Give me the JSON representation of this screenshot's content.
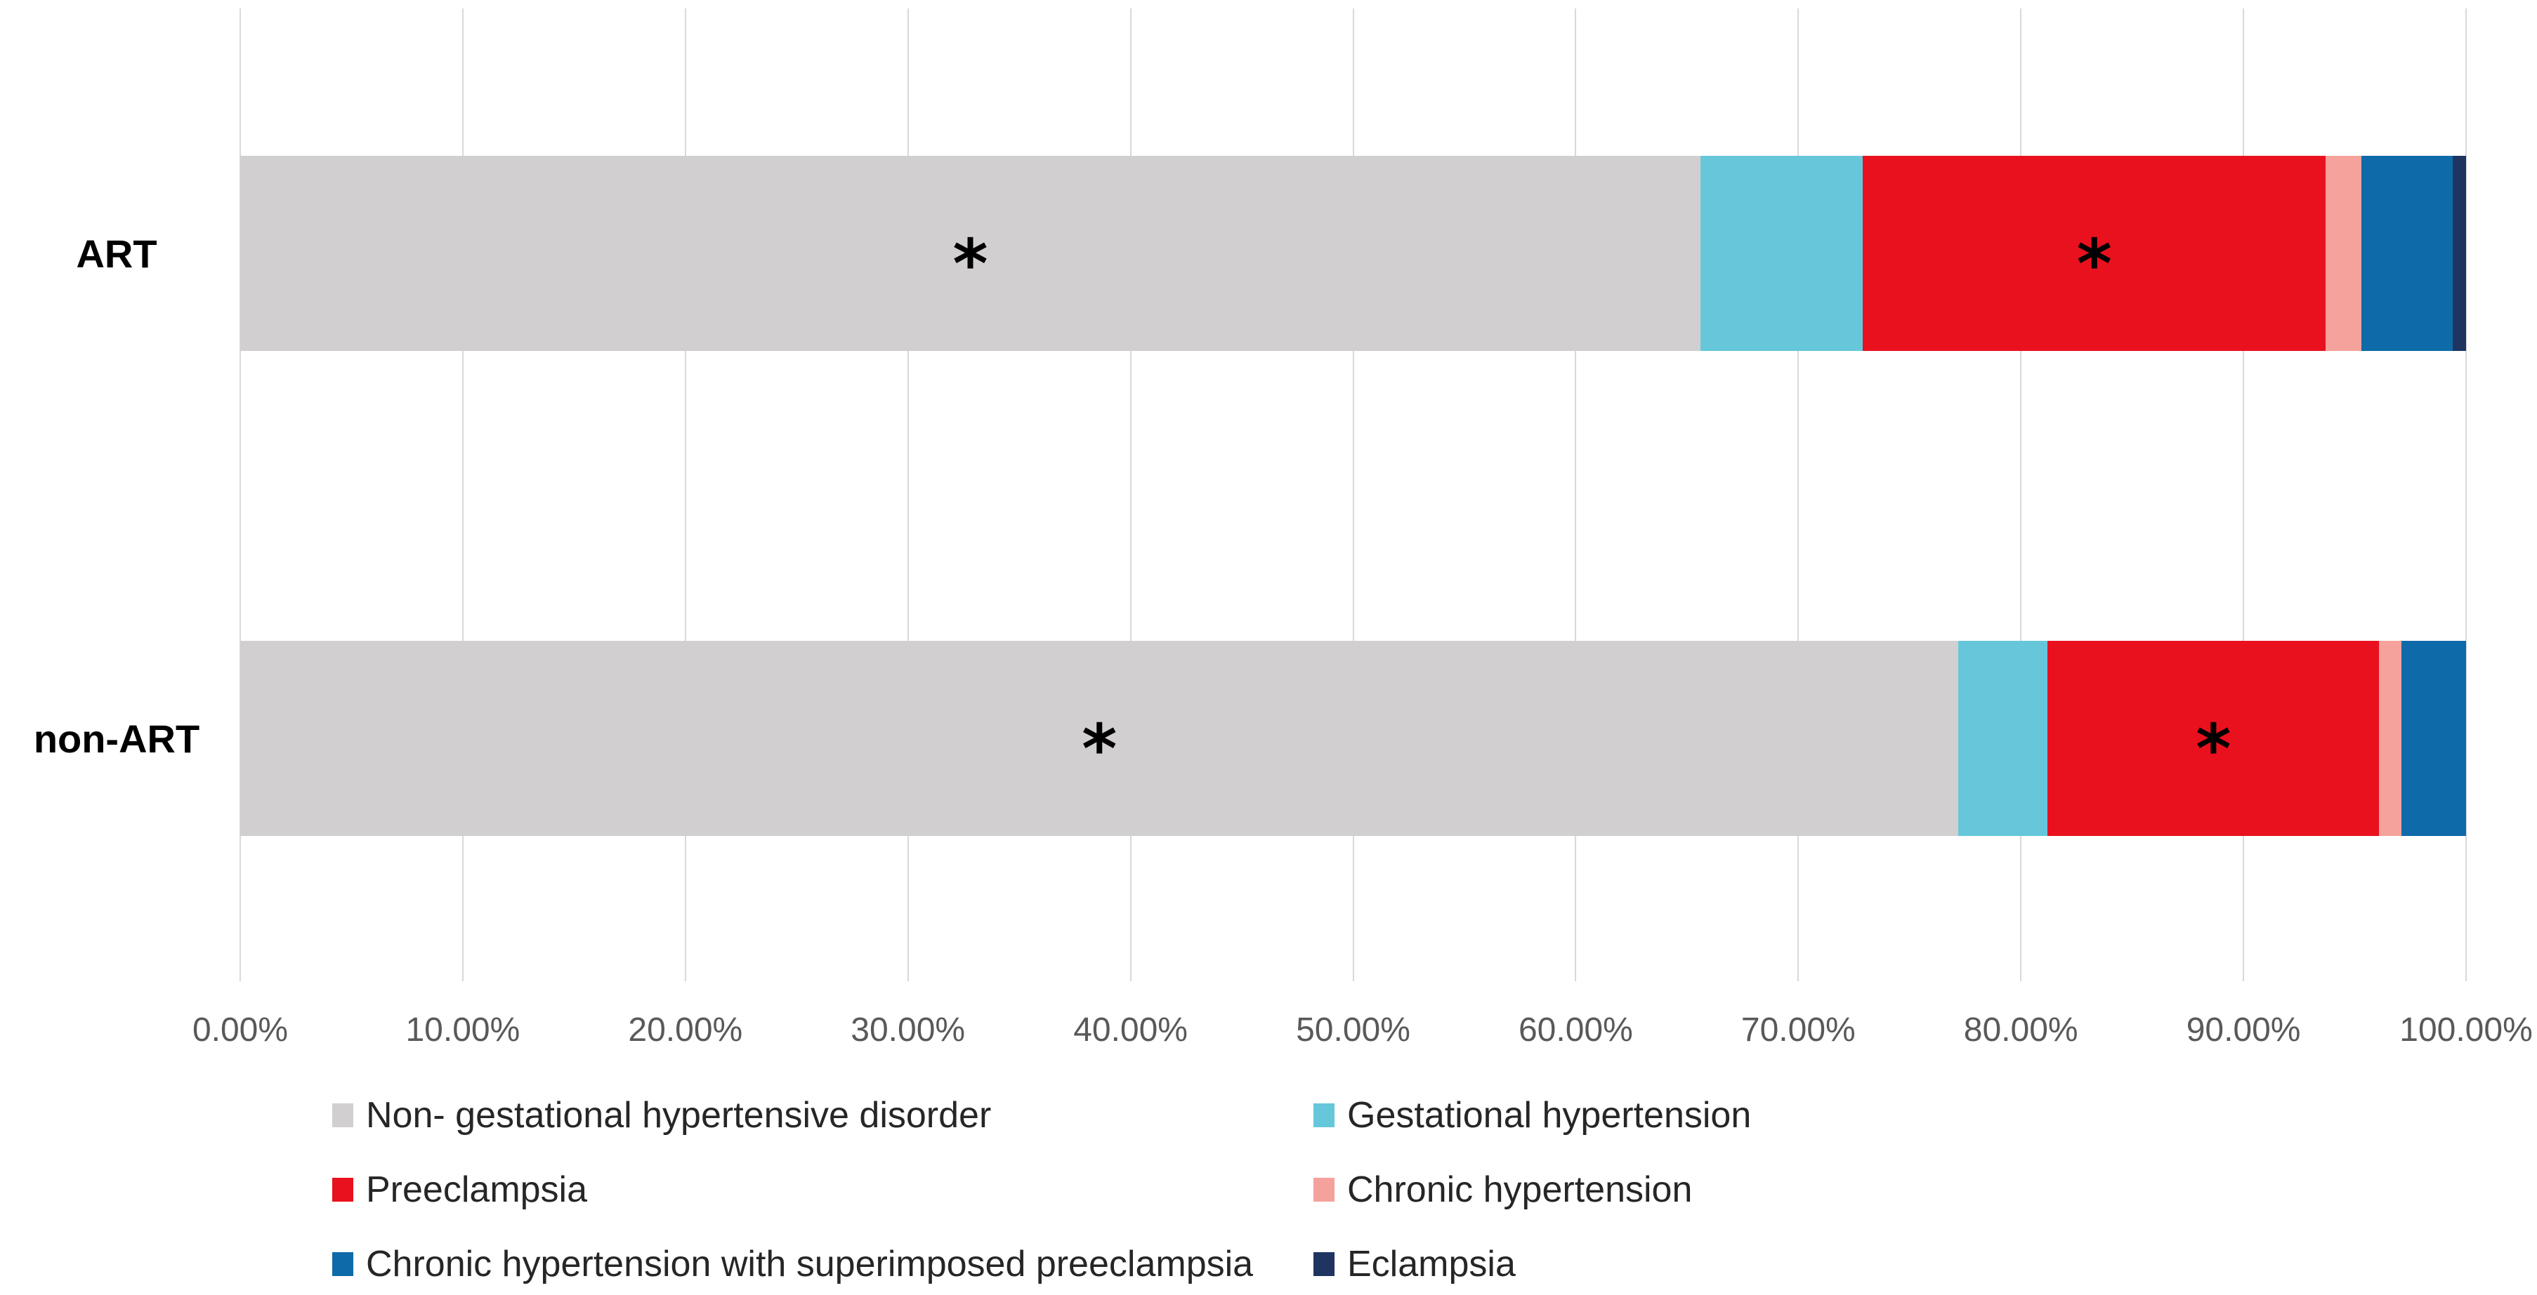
{
  "chart_data": {
    "type": "bar",
    "subtype": "horizontal-stacked-100pct",
    "title": "",
    "xlabel": "",
    "ylabel": "",
    "xlim": [
      0,
      100
    ],
    "grid": "vertical-major",
    "categories": [
      "ART",
      "non-ART"
    ],
    "series": [
      {
        "name": "Non- gestational hypertensive disorder",
        "color": "#D1CFCF",
        "values": [
          65.6,
          77.2
        ]
      },
      {
        "name": "Gestational hypertension",
        "color": "#66C7DB",
        "values": [
          7.3,
          4.0
        ]
      },
      {
        "name": "Preeclampsia",
        "color": "#E9111D",
        "values": [
          20.8,
          14.9
        ]
      },
      {
        "name": "Chronic hypertension",
        "color": "#F4A29B",
        "values": [
          1.6,
          1.0
        ]
      },
      {
        "name": "Chronic hypertension with superimposed preeclampsia",
        "color": "#0E6AA8",
        "values": [
          4.1,
          2.9
        ]
      },
      {
        "name": "Eclampsia",
        "color": "#1F3460",
        "values": [
          0.6,
          0.0
        ]
      }
    ],
    "x_ticks": [
      "0.00%",
      "10.00%",
      "20.00%",
      "30.00%",
      "40.00%",
      "50.00%",
      "60.00%",
      "70.00%",
      "80.00%",
      "90.00%",
      "100.00%"
    ],
    "legend_position": "bottom",
    "annotations": [
      {
        "category": "ART",
        "segment": "Non- gestational hypertensive disorder",
        "symbol": "*"
      },
      {
        "category": "ART",
        "segment": "Preeclampsia",
        "symbol": "*"
      },
      {
        "category": "non-ART",
        "segment": "Non- gestational hypertensive disorder",
        "symbol": "*"
      },
      {
        "category": "non-ART",
        "segment": "Preeclampsia",
        "symbol": "*"
      }
    ],
    "colors": {
      "gridline": "#D9D9D9",
      "axis_tick_text": "#595959",
      "legend_text": "#262626",
      "category_label_text": "#000000"
    }
  }
}
